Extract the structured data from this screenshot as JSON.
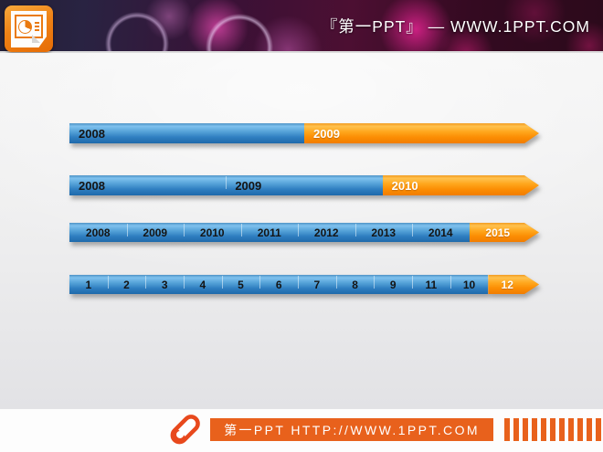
{
  "header": {
    "brand_text": "『第一PPT』 — WWW.1PPT.COM",
    "logo_icon": "powerpoint-logo-icon"
  },
  "timeline_bars": [
    {
      "align": "left",
      "segments": [
        {
          "label": "2008",
          "color": "blue"
        },
        {
          "label": "2009",
          "color": "orange"
        }
      ]
    },
    {
      "align": "left",
      "segments": [
        {
          "label": "2008",
          "color": "blue"
        },
        {
          "label": "2009",
          "color": "blue"
        },
        {
          "label": "2010",
          "color": "orange"
        }
      ]
    },
    {
      "align": "center",
      "segments": [
        {
          "label": "2008",
          "color": "blue"
        },
        {
          "label": "2009",
          "color": "blue"
        },
        {
          "label": "2010",
          "color": "blue"
        },
        {
          "label": "2011",
          "color": "blue"
        },
        {
          "label": "2012",
          "color": "blue"
        },
        {
          "label": "2013",
          "color": "blue"
        },
        {
          "label": "2014",
          "color": "blue"
        },
        {
          "label": "2015",
          "color": "orange"
        }
      ]
    },
    {
      "align": "center",
      "segments": [
        {
          "label": "1",
          "color": "blue"
        },
        {
          "label": "2",
          "color": "blue"
        },
        {
          "label": "3",
          "color": "blue"
        },
        {
          "label": "4",
          "color": "blue"
        },
        {
          "label": "5",
          "color": "blue"
        },
        {
          "label": "6",
          "color": "blue"
        },
        {
          "label": "7",
          "color": "blue"
        },
        {
          "label": "8",
          "color": "blue"
        },
        {
          "label": "9",
          "color": "blue"
        },
        {
          "label": "11",
          "color": "blue"
        },
        {
          "label": "10",
          "color": "blue"
        },
        {
          "label": "12",
          "color": "orange"
        }
      ]
    }
  ],
  "footer": {
    "url_text": "第一PPT HTTP://WWW.1PPT.COM",
    "pen_icon": "pen-clip-icon",
    "bars_count": 11,
    "accent_color": "#e8611c"
  },
  "colors": {
    "bar_blue": "#2f7ec0",
    "bar_orange": "#fb8d03",
    "footer_accent": "#e8611c",
    "header_base": "#3a1136"
  }
}
